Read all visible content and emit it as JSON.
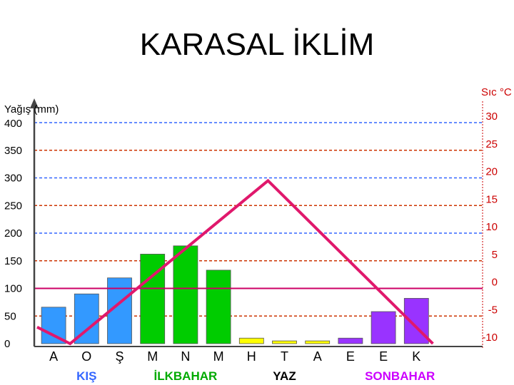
{
  "chart_data": {
    "type": "bar",
    "title": "KARASAL İKLİM",
    "y_left_label": "Yağış (mm)",
    "y_right_label": "Sıc °C",
    "y_left_ticks": [
      "0",
      "50",
      "100",
      "150",
      "200",
      "250",
      "300",
      "350",
      "400"
    ],
    "y_right_ticks": [
      "-10",
      "-5",
      "0",
      "5",
      "10",
      "15",
      "20",
      "25",
      "30"
    ],
    "ylim_left": [
      0,
      400
    ],
    "ylim_right": [
      -10,
      30
    ],
    "categories": [
      "A",
      "O",
      "Ş",
      "M",
      "N",
      "M",
      "H",
      "T",
      "A",
      "E",
      "E",
      "K"
    ],
    "series": [
      {
        "kind": "bar",
        "axis": "left",
        "values": [
          66,
          90,
          119,
          162,
          177,
          133,
          10,
          5,
          5,
          10,
          58,
          82
        ]
      },
      {
        "kind": "line",
        "axis": "right",
        "color": "#e0186c",
        "points": [
          [
            0,
            -7
          ],
          [
            1,
            -10
          ],
          [
            7,
            19.5
          ],
          [
            12,
            -10
          ]
        ]
      }
    ],
    "bar_colors": [
      "#3399ff",
      "#3399ff",
      "#3399ff",
      "#00cc00",
      "#00cc00",
      "#00cc00",
      "#ffff00",
      "#ffff00",
      "#ffff00",
      "#9933ff",
      "#9933ff",
      "#9933ff"
    ],
    "seasons": [
      {
        "label": "KIŞ",
        "color": "#3366ff",
        "center": 1
      },
      {
        "label": "İLKBAHAR",
        "color": "#00aa00",
        "center": 4
      },
      {
        "label": "YAZ",
        "color": "#000000",
        "center": 7
      },
      {
        "label": "SONBAHAR",
        "color": "#cc00ff",
        "center": 10.5
      }
    ],
    "grid_colors": [
      "#cc3300",
      "#3366ff",
      "#cc3300",
      "#3366ff",
      "#cc3300",
      "#3366ff",
      "#cc3300",
      "#3366ff"
    ],
    "zero_line_color": "#cc0066",
    "grid": true
  }
}
